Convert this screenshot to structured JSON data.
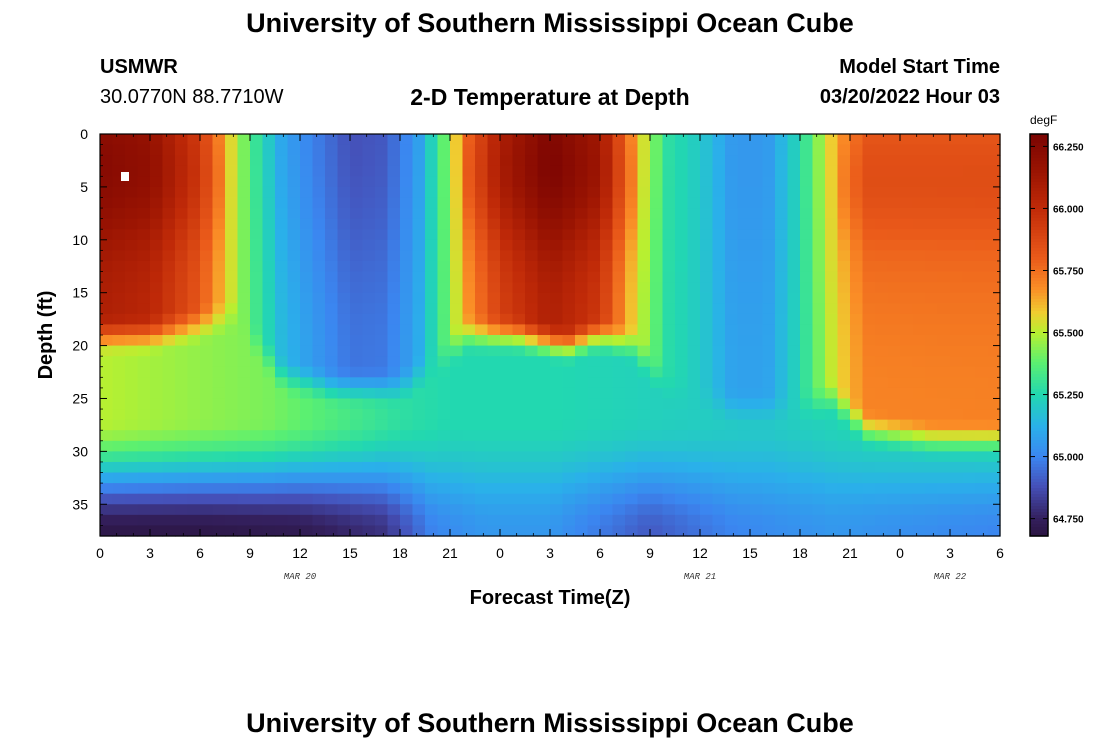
{
  "header": {
    "title": "University of Southern Mississippi Ocean Cube",
    "station_name": "USMWR",
    "station_coords": "30.0770N  88.7710W",
    "plot_title": "2-D Temperature at Depth",
    "start_label": "Model Start Time",
    "start_value": "03/20/2022 Hour 03"
  },
  "footer": {
    "title": "University of Southern Mississippi Ocean Cube"
  },
  "chart_data": {
    "type": "heatmap",
    "xlabel": "Forecast Time(Z)",
    "ylabel": "Depth (ft)",
    "x_tick_labels": [
      "0",
      "3",
      "6",
      "9",
      "12",
      "15",
      "18",
      "21",
      "0",
      "3",
      "6",
      "9",
      "12",
      "15",
      "18",
      "21",
      "0",
      "3",
      "6"
    ],
    "date_labels": [
      {
        "text": "MAR 20",
        "at_tick": 4
      },
      {
        "text": "MAR 21",
        "at_tick": 12
      },
      {
        "text": "MAR 22",
        "at_tick": 17
      }
    ],
    "y_ticks": [
      0,
      5,
      10,
      15,
      20,
      25,
      30,
      35
    ],
    "y_tick_labels": [
      "0",
      "5",
      "10",
      "15",
      "20",
      "25",
      "30",
      "35"
    ],
    "ylim": [
      0,
      38
    ],
    "x_range_hours": [
      0,
      54
    ],
    "depth_step_ft": 1,
    "time_step_hours": 0.75,
    "colorbar": {
      "unit": "degF",
      "range": [
        64.68,
        66.3
      ],
      "ticks": [
        64.75,
        65.0,
        65.25,
        65.5,
        65.75,
        66.0,
        66.25
      ],
      "tick_labels": [
        "64.750",
        "65.000",
        "65.250",
        "65.500",
        "65.750",
        "66.000",
        "66.250"
      ],
      "stops": [
        {
          "v": 64.68,
          "color": "#2a1440"
        },
        {
          "v": 64.75,
          "color": "#34205e"
        },
        {
          "v": 64.88,
          "color": "#4550b8"
        },
        {
          "v": 65.0,
          "color": "#3b86f0"
        },
        {
          "v": 65.12,
          "color": "#2ab0ea"
        },
        {
          "v": 65.25,
          "color": "#22d8b0"
        },
        {
          "v": 65.38,
          "color": "#5cf070"
        },
        {
          "v": 65.5,
          "color": "#b8f030"
        },
        {
          "v": 65.58,
          "color": "#f0cc30"
        },
        {
          "v": 65.68,
          "color": "#fa8c26"
        },
        {
          "v": 65.8,
          "color": "#ea5a1a"
        },
        {
          "v": 66.0,
          "color": "#c02a08"
        },
        {
          "v": 66.15,
          "color": "#9a1402"
        },
        {
          "v": 66.3,
          "color": "#7a0402"
        }
      ]
    },
    "surface_profile": [
      {
        "t": 0,
        "v": 66.2
      },
      {
        "t": 3,
        "v": 66.15
      },
      {
        "t": 6,
        "v": 65.9
      },
      {
        "t": 7.5,
        "v": 65.62
      },
      {
        "t": 9,
        "v": 65.35
      },
      {
        "t": 11,
        "v": 65.08
      },
      {
        "t": 13,
        "v": 64.98
      },
      {
        "t": 15,
        "v": 64.88
      },
      {
        "t": 17,
        "v": 64.9
      },
      {
        "t": 19,
        "v": 65.05
      },
      {
        "t": 20.5,
        "v": 65.35
      },
      {
        "t": 22,
        "v": 65.75
      },
      {
        "t": 24,
        "v": 66.05
      },
      {
        "t": 27,
        "v": 66.25
      },
      {
        "t": 30,
        "v": 66.1
      },
      {
        "t": 32,
        "v": 65.65
      },
      {
        "t": 34,
        "v": 65.28
      },
      {
        "t": 36,
        "v": 65.2
      },
      {
        "t": 38,
        "v": 65.05
      },
      {
        "t": 40,
        "v": 65.05
      },
      {
        "t": 42,
        "v": 65.25
      },
      {
        "t": 44,
        "v": 65.6
      },
      {
        "t": 46,
        "v": 65.8
      },
      {
        "t": 54,
        "v": 65.8
      }
    ],
    "pycnocline_depth_profile": [
      {
        "t": 0,
        "d": 17
      },
      {
        "t": 3,
        "d": 17
      },
      {
        "t": 6,
        "d": 16
      },
      {
        "t": 8,
        "d": 15
      },
      {
        "t": 9.5,
        "d": 18
      },
      {
        "t": 11,
        "d": 21
      },
      {
        "t": 14,
        "d": 22
      },
      {
        "t": 18,
        "d": 22
      },
      {
        "t": 20,
        "d": 20
      },
      {
        "t": 22,
        "d": 17
      },
      {
        "t": 25,
        "d": 17
      },
      {
        "t": 28,
        "d": 18
      },
      {
        "t": 30,
        "d": 17
      },
      {
        "t": 32,
        "d": 18
      },
      {
        "t": 34,
        "d": 22
      },
      {
        "t": 38,
        "d": 24
      },
      {
        "t": 42,
        "d": 24
      },
      {
        "t": 44,
        "d": 23
      },
      {
        "t": 46,
        "d": 26
      },
      {
        "t": 50,
        "d": 27
      },
      {
        "t": 54,
        "d": 27
      }
    ],
    "mid_layer_profile": [
      {
        "t": 0,
        "v": 65.5
      },
      {
        "t": 6,
        "v": 65.45
      },
      {
        "t": 10,
        "v": 65.42
      },
      {
        "t": 14,
        "v": 65.35
      },
      {
        "t": 18,
        "v": 65.28
      },
      {
        "t": 21,
        "v": 65.25
      },
      {
        "t": 27,
        "v": 65.25
      },
      {
        "t": 34,
        "v": 65.22
      },
      {
        "t": 40,
        "v": 65.2
      },
      {
        "t": 46,
        "v": 65.25
      },
      {
        "t": 54,
        "v": 65.28
      }
    ],
    "bottom_profile": [
      {
        "t": 0,
        "v": 64.7
      },
      {
        "t": 6,
        "v": 64.7
      },
      {
        "t": 12,
        "v": 64.72
      },
      {
        "t": 17,
        "v": 64.8
      },
      {
        "t": 20,
        "v": 65.0
      },
      {
        "t": 23,
        "v": 65.05
      },
      {
        "t": 27,
        "v": 65.05
      },
      {
        "t": 33,
        "v": 64.9
      },
      {
        "t": 38,
        "v": 65.0
      },
      {
        "t": 44,
        "v": 65.05
      },
      {
        "t": 54,
        "v": 65.0
      }
    ]
  }
}
